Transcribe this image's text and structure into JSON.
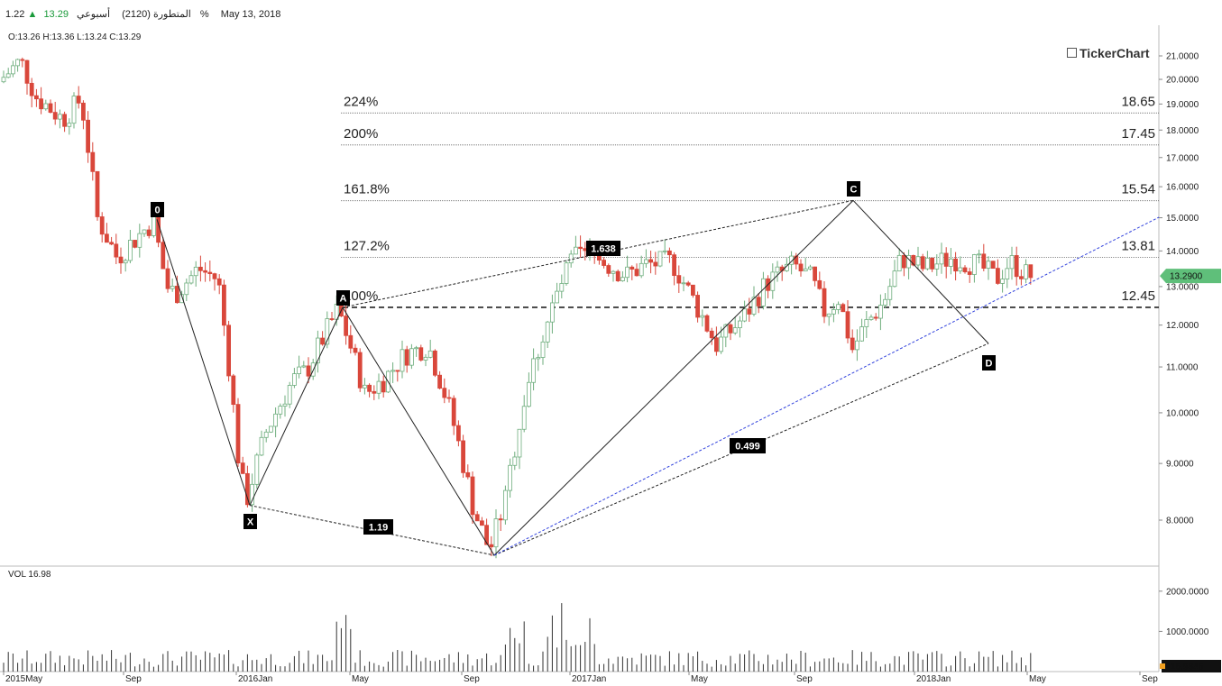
{
  "header": {
    "symbol": "المتطورة (2120)",
    "interval": "أسبوعي",
    "price": "13.29",
    "change": "1.22%",
    "date": "May 13, 2018"
  },
  "ohlc": "O:13.26 H:13.36 L:13.24 C:13.29",
  "volume_label": "VOL  16.98",
  "logo": "TickerChart",
  "colors": {
    "up": "#6fae7e",
    "down": "#d9473b",
    "trend": "#3344dd",
    "badge": "#5fbf7a",
    "fib": "#666666"
  },
  "chart_data": {
    "type": "candlestick",
    "y_ticks": [
      "21.0000",
      "20.0000",
      "19.0000",
      "18.0000",
      "17.0000",
      "16.0000",
      "15.0000",
      "14.0000",
      "13.0000",
      "12.0000",
      "11.0000",
      "10.0000",
      "9.0000",
      "8.0000"
    ],
    "x_ticks": [
      "2015May",
      "Sep",
      "2016Jan",
      "May",
      "Sep",
      "2017Jan",
      "May",
      "Sep",
      "2018Jan",
      "May",
      "Sep"
    ],
    "vol_ticks": [
      "2000.0000",
      "1000.0000"
    ],
    "last_price_badge": "13.2900",
    "last_vol_badge": "16.9846",
    "fib_levels": [
      {
        "label": "224%",
        "value": "18.65"
      },
      {
        "label": "200%",
        "value": "17.45"
      },
      {
        "label": "161.8%",
        "value": "15.54"
      },
      {
        "label": "127.2%",
        "value": "13.81"
      },
      {
        "label": "100%",
        "value": "12.45"
      }
    ],
    "pattern_points": [
      {
        "label": "0",
        "price": 14.95
      },
      {
        "label": "X",
        "price": 8.25
      },
      {
        "label": "A",
        "price": 12.45
      },
      {
        "label": "C",
        "price": 15.55
      },
      {
        "label": "D",
        "price": 11.55
      }
    ],
    "ratios": [
      "1.19",
      "1.638",
      "0.499"
    ]
  }
}
